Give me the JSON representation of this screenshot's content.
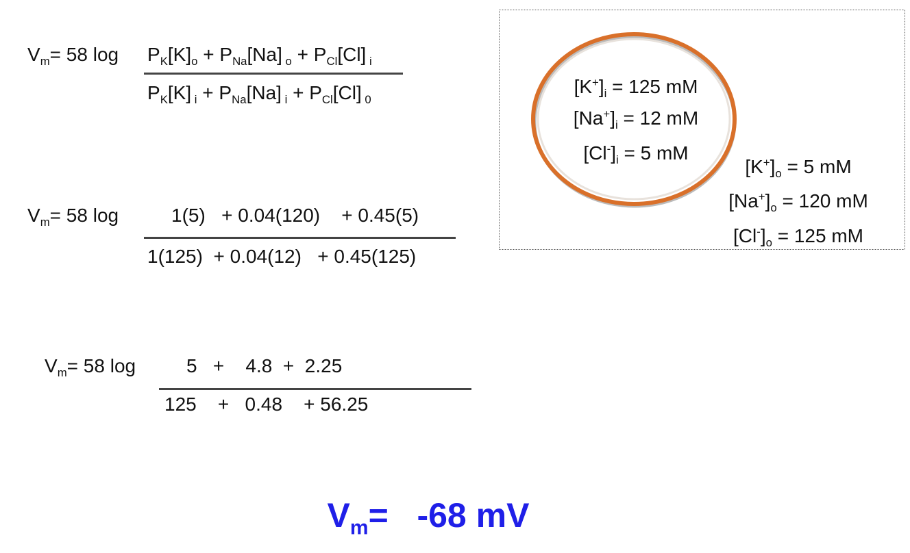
{
  "equations": [
    {
      "lhs": [
        {
          "base": "V"
        },
        {
          "sub": "m"
        },
        {
          "base": "= 58 log"
        }
      ],
      "numerator": [
        {
          "base": "P"
        },
        {
          "sub": "K"
        },
        {
          "base": "[K]"
        },
        {
          "sub": "o"
        },
        {
          "base": " + P"
        },
        {
          "sub": "Na"
        },
        {
          "base": "[Na]"
        },
        {
          "sub": " o"
        },
        {
          "base": " + P"
        },
        {
          "sub": "Cl"
        },
        {
          "base": "[Cl]"
        },
        {
          "sub": " i"
        }
      ],
      "denominator": [
        {
          "base": "P"
        },
        {
          "sub": "K"
        },
        {
          "base": "[K]"
        },
        {
          "sub": " i"
        },
        {
          "base": " + P"
        },
        {
          "sub": "Na"
        },
        {
          "base": "[Na]"
        },
        {
          "sub": " i"
        },
        {
          "base": " + P"
        },
        {
          "sub": "Cl"
        },
        {
          "base": "[Cl]"
        },
        {
          "sub": " 0"
        }
      ]
    },
    {
      "lhs": [
        {
          "base": "V"
        },
        {
          "sub": "m"
        },
        {
          "base": "= 58 log"
        }
      ],
      "numerator": [
        {
          "base": "1(5)   + 0.04(120)    + 0.45(5)"
        }
      ],
      "denominator": [
        {
          "base": "1(125)  + 0.04(12)   + 0.45(125)"
        }
      ]
    },
    {
      "lhs": [
        {
          "base": "V"
        },
        {
          "sub": "m"
        },
        {
          "base": "= 58 log"
        }
      ],
      "numerator": [
        {
          "base": "5   +    4.8  +  2.25"
        }
      ],
      "denominator": [
        {
          "base": "125    +   0.48    + 56.25"
        }
      ]
    }
  ],
  "inside": [
    [
      {
        "base": "[K"
      },
      {
        "sup": "+"
      },
      {
        "base": "]"
      },
      {
        "sub": "i"
      },
      {
        "base": " = 125 mM"
      }
    ],
    [
      {
        "base": "[Na"
      },
      {
        "sup": "+"
      },
      {
        "base": "]"
      },
      {
        "sub": "i"
      },
      {
        "base": " = 12 mM"
      }
    ],
    [
      {
        "base": "[Cl"
      },
      {
        "sup": "-"
      },
      {
        "base": "]"
      },
      {
        "sub": "i"
      },
      {
        "base": " = 5 mM"
      }
    ]
  ],
  "outside": [
    [
      {
        "base": "[K"
      },
      {
        "sup": "+"
      },
      {
        "base": "]"
      },
      {
        "sub": "o"
      },
      {
        "base": " = 5 mM"
      }
    ],
    [
      {
        "base": "[Na"
      },
      {
        "sup": "+"
      },
      {
        "base": "]"
      },
      {
        "sub": "o"
      },
      {
        "base": " = 120 mM"
      }
    ],
    [
      {
        "base": "[Cl"
      },
      {
        "sup": "-"
      },
      {
        "base": "]"
      },
      {
        "sub": "o"
      },
      {
        "base": " = 125 mM"
      }
    ]
  ],
  "result": [
    {
      "base": "V"
    },
    {
      "sub": "m"
    },
    {
      "base": "=   -68 mV"
    }
  ]
}
